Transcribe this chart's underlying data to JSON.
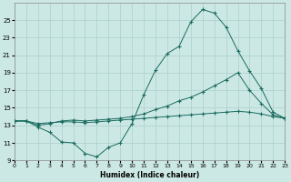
{
  "xlabel": "Humidex (Indice chaleur)",
  "bg_color": "#cce8e4",
  "grid_color": "#aacfcc",
  "line_color": "#1a6b60",
  "series": {
    "line1_x": [
      0,
      1,
      2,
      3,
      4,
      5,
      6,
      7,
      8,
      9,
      10,
      11,
      12,
      13,
      14,
      15,
      16,
      17,
      18,
      19,
      20,
      21,
      22,
      23
    ],
    "line1_y": [
      13.5,
      13.5,
      12.8,
      12.2,
      11.1,
      11.0,
      9.8,
      9.4,
      10.5,
      11.0,
      13.2,
      16.5,
      19.3,
      21.2,
      22.0,
      24.8,
      26.2,
      25.8,
      24.2,
      21.5,
      19.2,
      17.2,
      14.5,
      13.8
    ],
    "line2_x": [
      0,
      1,
      2,
      3,
      4,
      5,
      6,
      7,
      8,
      9,
      10,
      11,
      12,
      13,
      14,
      15,
      16,
      17,
      18,
      19,
      20,
      21,
      22,
      23
    ],
    "line2_y": [
      13.5,
      13.5,
      13.0,
      13.2,
      13.5,
      13.6,
      13.5,
      13.6,
      13.7,
      13.8,
      14.0,
      14.3,
      14.8,
      15.2,
      15.8,
      16.2,
      16.8,
      17.5,
      18.2,
      19.0,
      17.0,
      15.5,
      14.2,
      13.8
    ],
    "line3_x": [
      0,
      1,
      2,
      3,
      4,
      5,
      6,
      7,
      8,
      9,
      10,
      11,
      12,
      13,
      14,
      15,
      16,
      17,
      18,
      19,
      20,
      21,
      22,
      23
    ],
    "line3_y": [
      13.5,
      13.5,
      13.2,
      13.3,
      13.4,
      13.4,
      13.3,
      13.4,
      13.5,
      13.6,
      13.7,
      13.8,
      13.9,
      14.0,
      14.1,
      14.2,
      14.3,
      14.4,
      14.5,
      14.6,
      14.5,
      14.3,
      14.0,
      13.8
    ]
  },
  "xlim": [
    0,
    23
  ],
  "ylim": [
    9,
    27
  ],
  "yticks": [
    9,
    11,
    13,
    15,
    17,
    19,
    21,
    23,
    25
  ],
  "xticks": [
    0,
    1,
    2,
    3,
    4,
    5,
    6,
    7,
    8,
    9,
    10,
    11,
    12,
    13,
    14,
    15,
    16,
    17,
    18,
    19,
    20,
    21,
    22,
    23
  ]
}
